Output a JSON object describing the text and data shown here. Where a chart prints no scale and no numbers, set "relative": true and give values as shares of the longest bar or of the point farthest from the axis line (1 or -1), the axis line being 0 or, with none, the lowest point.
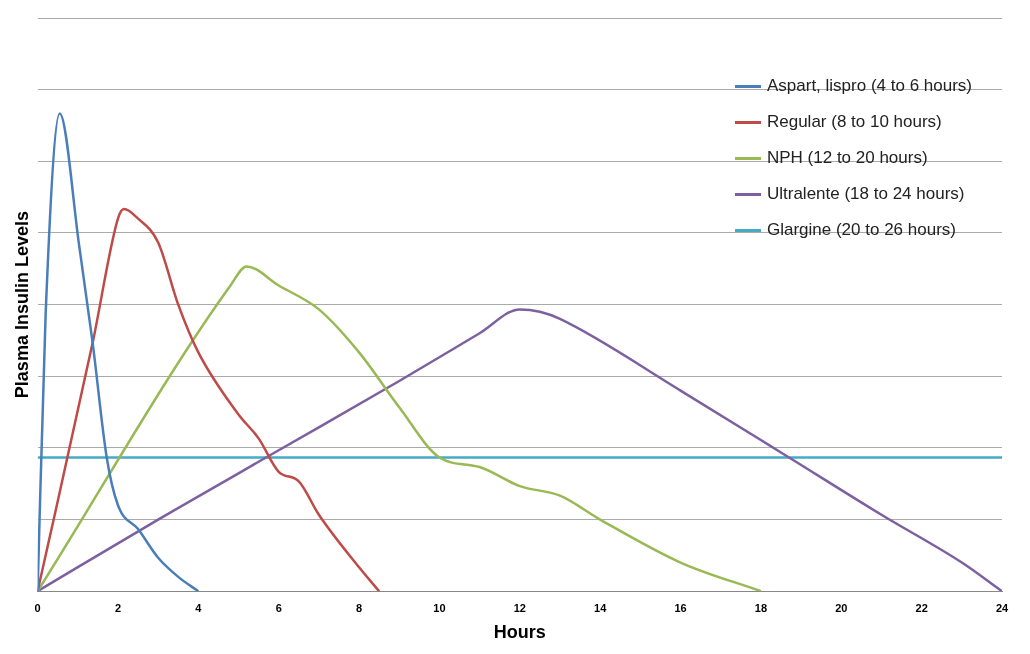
{
  "chart_data": {
    "type": "line",
    "xlabel": "Hours",
    "ylabel": "Plasma Insulin Levels",
    "relative": true,
    "xlim": [
      0,
      24
    ],
    "xticks": [
      0,
      2,
      4,
      6,
      8,
      10,
      12,
      14,
      16,
      18,
      20,
      22,
      24
    ],
    "grid": "y",
    "legend": "top right",
    "marker": "none",
    "line_style": "solid",
    "series": [
      {
        "name": "Aspart, lispro (4 to 6 hours)",
        "color": "#4a7ebb",
        "x": [
          0,
          0.2,
          0.55,
          1.04,
          1.37,
          1.72,
          2,
          2.5,
          3,
          3.5,
          4
        ],
        "values": [
          0,
          0.58,
          1,
          0.72,
          0.52,
          0.28,
          0.18,
          0.13,
          0.07,
          0.03,
          0
        ]
      },
      {
        "name": "Regular (8 to 10 hours)",
        "color": "#be4b48",
        "x": [
          0,
          1.37,
          2,
          2.15,
          2.5,
          3,
          3.5,
          4,
          5,
          5.5,
          6,
          6.5,
          7,
          8,
          8.5
        ],
        "values": [
          0,
          0.52,
          0.78,
          0.8,
          0.78,
          0.73,
          0.6,
          0.5,
          0.37,
          0.32,
          0.25,
          0.23,
          0.16,
          0.05,
          0
        ]
      },
      {
        "name": "NPH (12 to 20 hours)",
        "color": "#98b954",
        "x": [
          0,
          4.8,
          5.2,
          6,
          7,
          8,
          9,
          10,
          11,
          12,
          13,
          14,
          16,
          18
        ],
        "values": [
          0,
          0.64,
          0.68,
          0.64,
          0.59,
          0.5,
          0.385,
          0.28,
          0.26,
          0.22,
          0.2,
          0.15,
          0.06,
          0
        ]
      },
      {
        "name": "Ultralente (18 to 24 hours)",
        "color": "#7d60a0",
        "x": [
          0,
          3,
          6,
          9,
          11,
          12,
          12.5,
          13,
          16,
          18.7,
          21,
          23,
          24
        ],
        "values": [
          0,
          0.15,
          0.295,
          0.44,
          0.54,
          0.59,
          0.585,
          0.57,
          0.42,
          0.28,
          0.16,
          0.06,
          0
        ]
      },
      {
        "name": "Glargine (20 to 26 hours)",
        "color": "#46aac5",
        "x": [
          0,
          24
        ],
        "values": [
          0.28,
          0.28
        ]
      }
    ]
  }
}
